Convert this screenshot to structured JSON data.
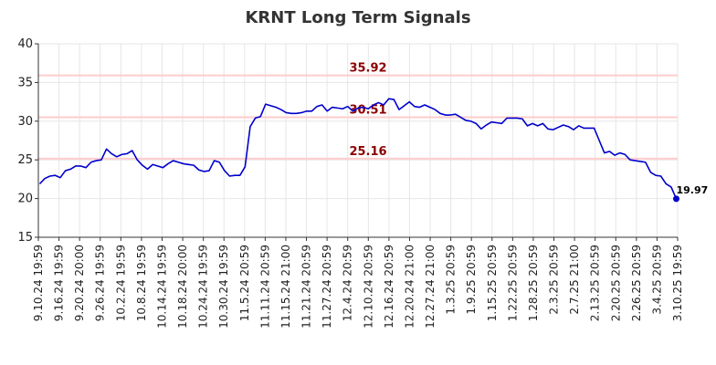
{
  "chart_data": {
    "type": "line",
    "title": "KRNT Long Term Signals",
    "xlabel": "",
    "ylabel": "",
    "ylim": [
      15,
      40
    ],
    "yticks": [
      "15",
      "20",
      "25",
      "30",
      "35",
      "40"
    ],
    "grid": true,
    "line_color": "#0000cc",
    "level_color": "#ffcccc",
    "level_label_color": "#8b0000",
    "xtick_labels": [
      "9.10.24 19:59",
      "9.16.24 19:59",
      "9.20.24 20:00",
      "9.26.24 19:59",
      "10.2.24 19:59",
      "10.8.24 19:59",
      "10.14.24 19:59",
      "10.18.24 20:00",
      "10.24.24 19:59",
      "10.30.24 19:59",
      "11.5.24 20:59",
      "11.11.24 20:59",
      "11.15.24 21:00",
      "11.21.24 20:59",
      "11.27.24 20:59",
      "12.4.24 20:59",
      "12.10.24 20:59",
      "12.16.24 20:59",
      "12.20.24 21:00",
      "12.27.24 21:00",
      "1.3.25 20:59",
      "1.9.25 20:59",
      "1.15.25 20:59",
      "1.22.25 20:59",
      "1.28.25 20:59",
      "2.3.25 20:59",
      "2.7.25 21:00",
      "2.13.25 20:59",
      "2.20.25 20:59",
      "2.26.25 20:59",
      "3.4.25 20:59",
      "3.10.25 19:59"
    ],
    "levels": [
      {
        "value": 35.92,
        "label": "35.92"
      },
      {
        "value": 30.51,
        "label": "30.51"
      },
      {
        "value": 25.16,
        "label": "25.16"
      }
    ],
    "last_value": {
      "value": 19.97,
      "label": "19.97"
    },
    "series": [
      {
        "values": [
          21.9,
          22.6,
          22.9,
          23.0,
          22.7,
          23.6,
          23.8,
          24.2,
          24.2,
          24.0,
          24.7,
          24.9,
          25.0,
          26.4,
          25.8,
          25.4,
          25.7,
          25.8,
          26.2,
          25.0,
          24.3,
          23.8,
          24.4,
          24.2,
          24.0,
          24.5,
          24.9,
          24.7,
          24.5,
          24.4,
          24.3,
          23.7,
          23.5,
          23.6,
          24.9,
          24.7,
          23.6,
          22.9,
          23.0,
          23.0,
          24.1,
          29.3,
          30.4,
          30.6,
          32.2,
          32.0,
          31.8,
          31.5,
          31.1,
          31.0,
          31.0,
          31.1,
          31.3,
          31.3,
          31.9,
          32.1,
          31.3,
          31.8,
          31.7,
          31.6,
          31.9,
          31.3,
          31.7,
          31.8,
          31.6,
          32.1,
          32.4,
          32.1,
          32.9,
          32.8,
          31.5,
          32.0,
          32.5,
          31.9,
          31.8,
          32.1,
          31.8,
          31.5,
          31.0,
          30.8,
          30.8,
          30.9,
          30.5,
          30.1,
          30.0,
          29.7,
          29.0,
          29.5,
          29.9,
          29.8,
          29.7,
          30.4,
          30.4,
          30.4,
          30.3,
          29.4,
          29.7,
          29.4,
          29.7,
          29.0,
          28.9,
          29.2,
          29.5,
          29.3,
          28.9,
          29.4,
          29.1,
          29.1,
          29.1,
          27.5,
          25.9,
          26.1,
          25.6,
          25.9,
          25.7,
          25.0,
          24.9,
          24.8,
          24.7,
          23.4,
          23.0,
          22.9,
          21.9,
          21.5,
          19.97
        ]
      }
    ]
  }
}
